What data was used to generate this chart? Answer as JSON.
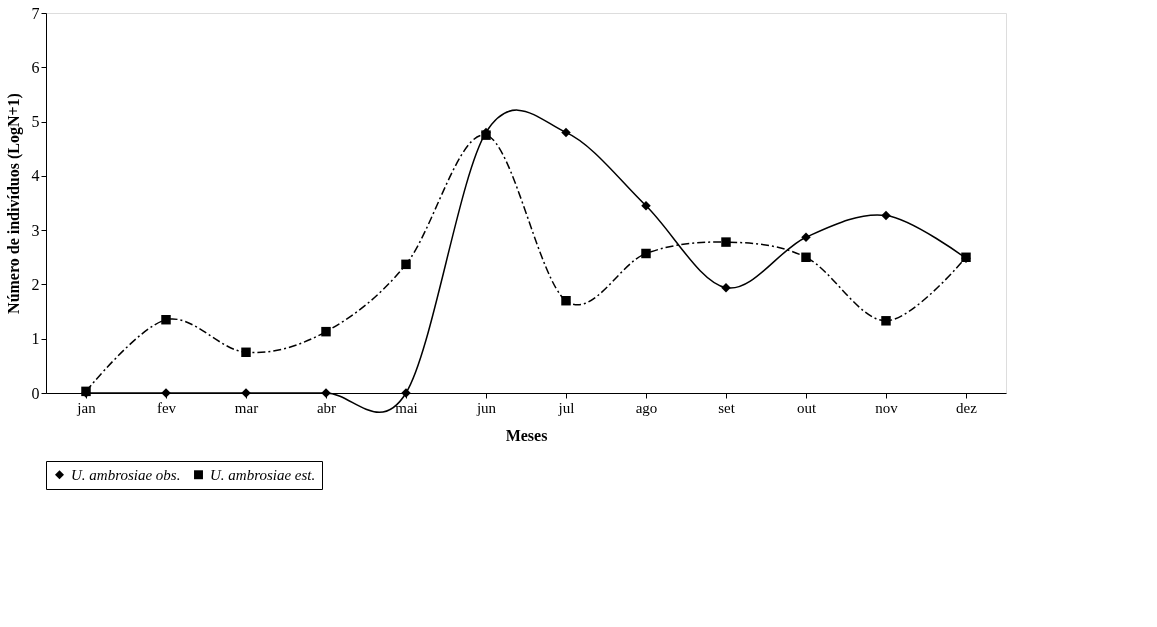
{
  "chart_data": {
    "type": "line",
    "xlabel": "Meses",
    "ylabel": "Número de indivíduos (LogN+1)",
    "categories": [
      "jan",
      "fev",
      "mar",
      "abr",
      "mai",
      "jun",
      "jul",
      "ago",
      "set",
      "out",
      "nov",
      "dez"
    ],
    "ylim": [
      0,
      7
    ],
    "yticks": [
      0,
      1,
      2,
      3,
      4,
      5,
      6,
      7
    ],
    "grid": false,
    "legend": "bottom",
    "series": [
      {
        "name": "U. ambrosiae obs.",
        "color": "#000000",
        "marker": "diamond",
        "line_style": "solid",
        "values": [
          0,
          0,
          0,
          0,
          0,
          4.8,
          4.8,
          3.45,
          1.94,
          2.87,
          3.27,
          2.48
        ]
      },
      {
        "name": "U. ambrosiae est.",
        "color": "#000000",
        "marker": "square",
        "line_style": "dashed",
        "values": [
          0.03,
          1.35,
          0.75,
          1.13,
          2.37,
          4.75,
          1.7,
          2.57,
          2.78,
          2.5,
          1.33,
          2.5
        ]
      }
    ]
  }
}
